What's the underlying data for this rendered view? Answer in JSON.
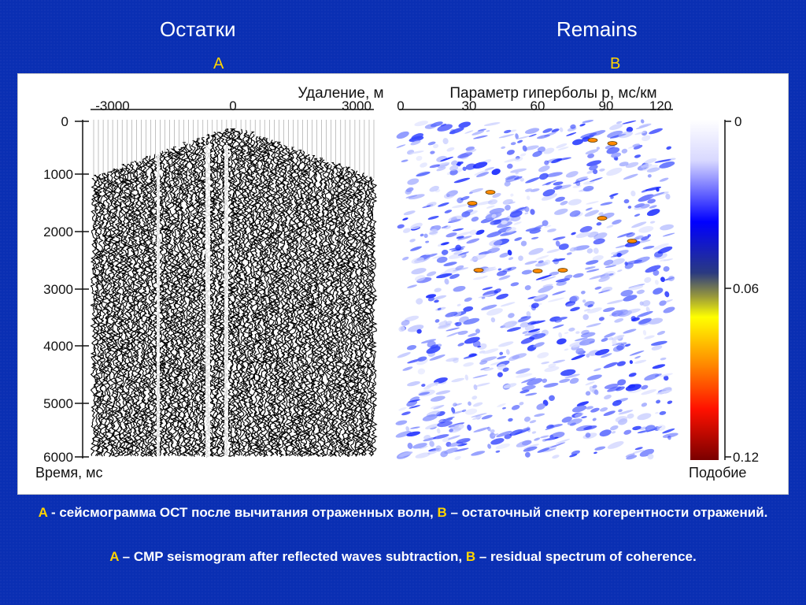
{
  "titles": {
    "left": "Остатки",
    "right": "Remains"
  },
  "letters": {
    "a": "A",
    "b": "B"
  },
  "seismogram": {
    "x_axis_label": "Удаление, м",
    "x_ticks": [
      "-3000",
      "0",
      "3000"
    ],
    "y_ticks": [
      "0",
      "1000",
      "2000",
      "3000",
      "4000",
      "5000",
      "6000"
    ],
    "y_axis_label": "Время, мс"
  },
  "spectrum": {
    "x_axis_label": "Параметр гиперболы р, мс/км",
    "x_ticks": [
      "0",
      "30",
      "60",
      "90",
      "120"
    ]
  },
  "colorbar": {
    "ticks": [
      "0",
      "0.06",
      "0.12"
    ],
    "label": "Подобие",
    "colors": [
      "#ffffff",
      "#0000ff",
      "#ffff00",
      "#ff3300",
      "#8a0000"
    ]
  },
  "caption": {
    "ru_a": "A",
    "ru_a_text": " - сейсмограмма ОСТ после вычитания отраженных волн, ",
    "ru_b": "B",
    "ru_b_text": " – остаточный спектр когерентности отражений.",
    "en_a": "A",
    "en_a_text": " – CMP seismogram after reflected waves subtraction, ",
    "en_b": "B",
    "en_b_text": " – residual spectrum of coherence."
  }
}
